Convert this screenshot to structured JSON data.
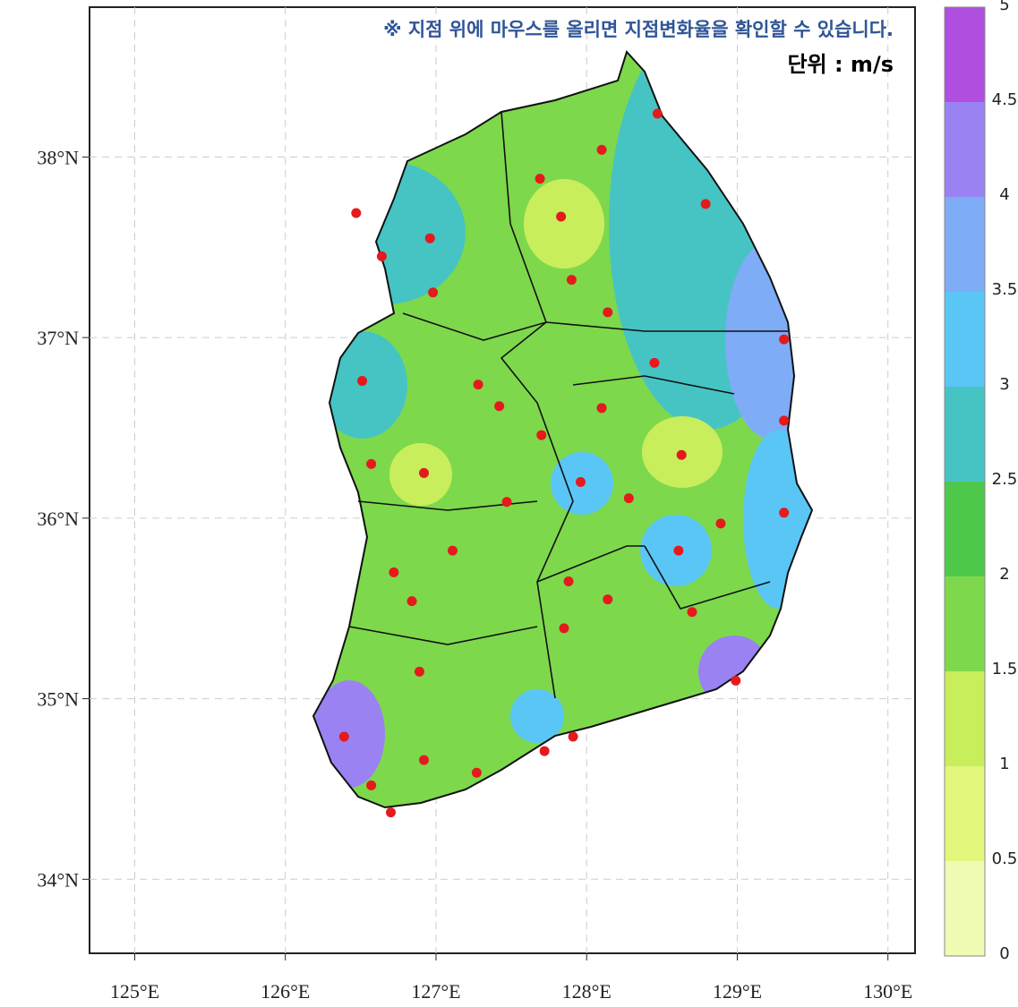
{
  "notice": "※ 지점 위에 마우스를 올리면 지점변화율을 확인할 수 있습니다.",
  "unit": "단위 : m/s",
  "map": {
    "lonlim": [
      124.7,
      130.18
    ],
    "latlim": [
      33.59,
      38.83
    ],
    "lonticks": [
      {
        "value": 125,
        "label": "125°E"
      },
      {
        "value": 126,
        "label": "126°E"
      },
      {
        "value": 127,
        "label": "127°E"
      },
      {
        "value": 128,
        "label": "128°E"
      },
      {
        "value": 129,
        "label": "129°E"
      },
      {
        "value": 130,
        "label": "130°E"
      }
    ],
    "latticks": [
      {
        "value": 34,
        "label": "34°N"
      },
      {
        "value": 35,
        "label": "35°N"
      },
      {
        "value": 36,
        "label": "36°N"
      },
      {
        "value": 37,
        "label": "37°N"
      },
      {
        "value": 38,
        "label": "38°N"
      }
    ],
    "grid": true,
    "station_color": "#e41a1c",
    "stations": {
      "lon": [
        128.47,
        128.1,
        127.69,
        128.79,
        127.83,
        126.47,
        126.96,
        126.64,
        126.98,
        127.9,
        128.14,
        129.31,
        128.45,
        126.51,
        127.28,
        127.42,
        128.1,
        129.31,
        127.7,
        128.63,
        126.57,
        126.92,
        127.96,
        128.28,
        127.47,
        129.31,
        128.89,
        128.61,
        127.11,
        126.72,
        127.88,
        128.14,
        126.84,
        128.7,
        127.85,
        126.89,
        128.99,
        126.39,
        126.92,
        127.91,
        127.72,
        127.27,
        126.57,
        126.7
      ],
      "lat": [
        38.24,
        38.04,
        37.88,
        37.74,
        37.67,
        37.69,
        37.55,
        37.45,
        37.25,
        37.32,
        37.14,
        36.99,
        36.86,
        36.76,
        36.74,
        36.62,
        36.61,
        36.54,
        36.46,
        36.35,
        36.3,
        36.25,
        36.2,
        36.11,
        36.09,
        36.03,
        35.97,
        35.82,
        35.82,
        35.7,
        35.65,
        35.55,
        35.54,
        35.48,
        35.39,
        35.15,
        35.1,
        34.79,
        34.66,
        34.79,
        34.71,
        34.59,
        34.52,
        34.37
      ]
    }
  },
  "colorbar": {
    "levels": [
      0,
      0.5,
      1,
      1.5,
      2,
      2.5,
      3,
      3.5,
      4,
      4.5,
      5
    ],
    "colors": [
      "#f0fbb4",
      "#e2f77c",
      "#c8ee5c",
      "#7ed84c",
      "#4ec84a",
      "#46c4c4",
      "#5ac6f6",
      "#7eacf6",
      "#9a82f2",
      "#b04ee0"
    ]
  }
}
